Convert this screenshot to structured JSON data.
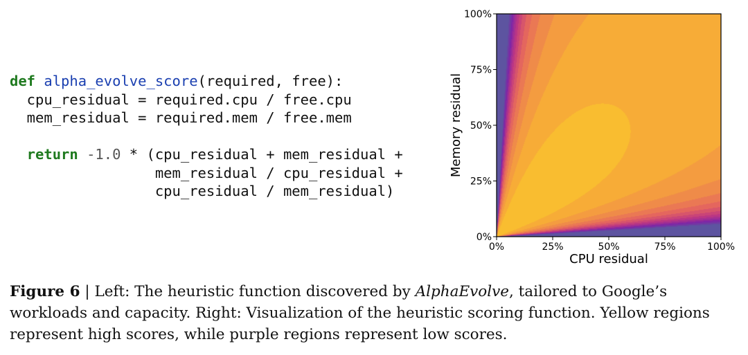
{
  "code": {
    "line1": {
      "kw": "def",
      "fn": "alpha_evolve_score",
      "rest": "(required, free):"
    },
    "line2": "  cpu_residual = required.cpu / free.cpu",
    "line3": "  mem_residual = required.mem / free.mem",
    "line4": {
      "indent": "  ",
      "kw": "return",
      "num": "-1.0",
      "rest": " * (cpu_residual + mem_residual +"
    },
    "line5": "                 mem_residual / cpu_residual +",
    "line6": "                 cpu_residual / mem_residual)"
  },
  "chart_data": {
    "type": "heatmap",
    "xlabel": "CPU residual",
    "ylabel": "Memory residual",
    "xlim": [
      0,
      1
    ],
    "ylim": [
      0,
      1
    ],
    "xticks": [
      "0%",
      "25%",
      "50%",
      "75%",
      "100%"
    ],
    "yticks": [
      "0%",
      "25%",
      "50%",
      "75%",
      "100%"
    ],
    "function": "-1.0 * (cpu_residual + mem_residual + mem_residual / cpu_residual + cpu_residual / mem_residual)",
    "colormap": "plasma (purple = low, yellow = high)"
  },
  "caption": {
    "label": "Figure 6",
    "sep": " | Left: The heuristic function discovered by ",
    "name": "AlphaEvolve",
    "rest": ", tailored to Google’s workloads and capacity. Right: Visualization of the heuristic scoring function. Yellow regions represent high scores, while purple regions represent low scores."
  }
}
